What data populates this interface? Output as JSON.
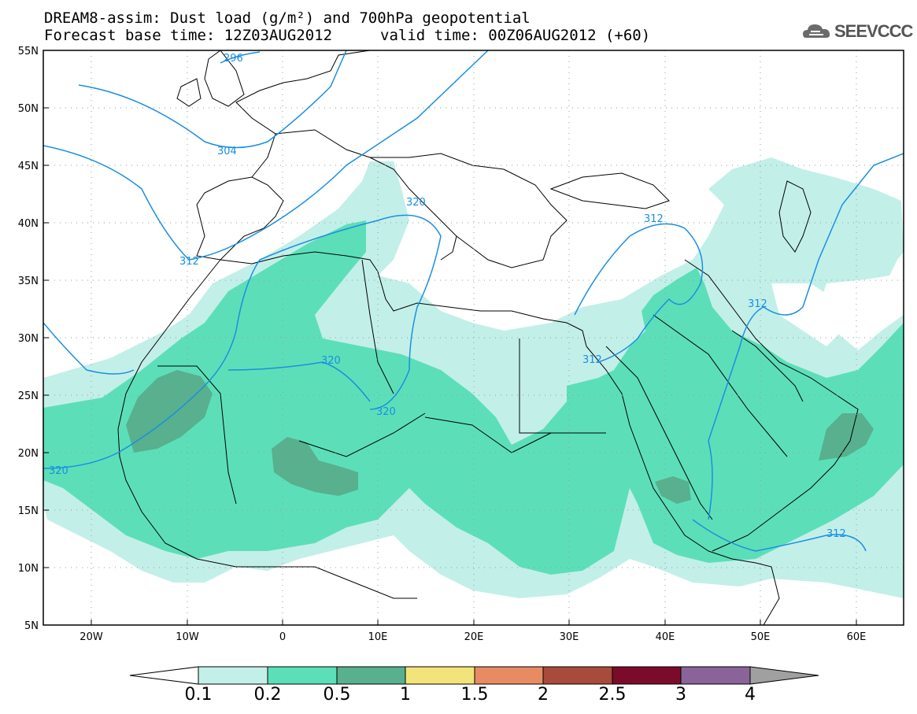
{
  "title": {
    "line1": "DREAM8-assim: Dust load (g/m²) and 700hPa geopotential",
    "base_time": "Forecast base time: 12Z03AUG2012",
    "valid_time": "valid time: 00Z06AUG2012 (+60)"
  },
  "logo": {
    "text": "SEEVCCC",
    "icon": "cloud-icon"
  },
  "map": {
    "lat_labels": [
      "55N",
      "50N",
      "45N",
      "40N",
      "35N",
      "30N",
      "25N",
      "20N",
      "15N",
      "10N",
      "5N"
    ],
    "lon_labels": [
      "20W",
      "10W",
      "0",
      "10E",
      "20E",
      "30E",
      "40E",
      "50E",
      "60E"
    ],
    "contour_labels": [
      "296",
      "304",
      "312",
      "320",
      "320",
      "312",
      "312",
      "312",
      "320",
      "320",
      "312"
    ],
    "colors": {
      "dust_0_1": "#c3efe9",
      "dust_0_2": "#5cdfb8",
      "dust_0_5": "#58b08e",
      "contour": "#1a8fe0"
    }
  },
  "colorbar": {
    "labels": [
      "0.1",
      "0.2",
      "0.5",
      "1",
      "1.5",
      "2",
      "2.5",
      "3",
      "4"
    ],
    "colors": [
      "#c3efe9",
      "#5cdfb8",
      "#58b08e",
      "#f2e47a",
      "#e88b63",
      "#a84a3c",
      "#7a0b2a",
      "#8a6498",
      "#a0a0a0"
    ]
  }
}
